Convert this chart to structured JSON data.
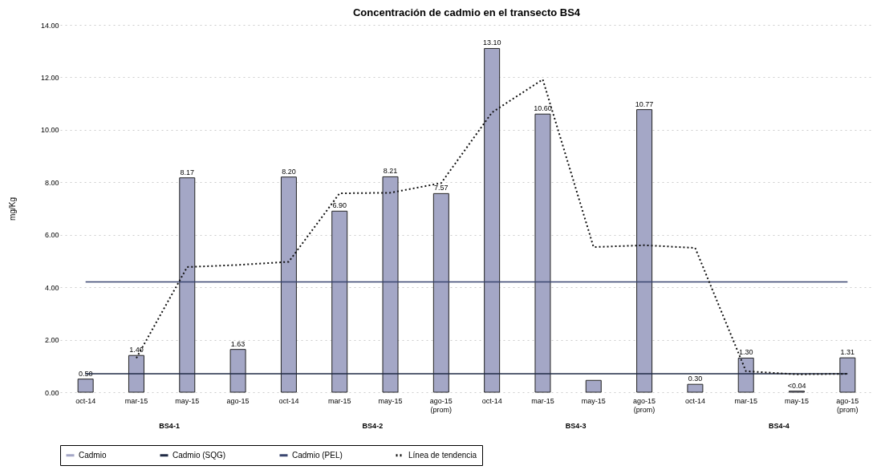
{
  "chart_data": {
    "type": "bar",
    "title": "Concentración de cadmio en el transecto BS4",
    "ylabel": "mg/Kg",
    "categories": [
      "oct-14",
      "mar-15",
      "may-15",
      "ago-15",
      "oct-14",
      "mar-15",
      "may-15",
      "ago-15 (prom)",
      "oct-14",
      "mar-15",
      "may-15",
      "ago-15 (prom)",
      "oct-14",
      "mar-15",
      "may-15",
      "ago-15 (prom)"
    ],
    "series": [
      {
        "name": "Cadmio",
        "color": "#a4a7c6",
        "values": [
          0.5,
          1.4,
          8.17,
          1.63,
          8.2,
          6.9,
          8.21,
          7.57,
          13.1,
          10.6,
          0.45,
          10.77,
          0.3,
          1.3,
          0.04,
          1.31
        ],
        "value_labels": [
          "0.50",
          "1.40",
          "8.17",
          "1.63",
          "8.20",
          "6.90",
          "8.21",
          "7.57",
          "13.10",
          "10.60",
          null,
          "10.77",
          "0.30",
          "1.30",
          "<0.04",
          "1.31"
        ]
      },
      {
        "name": "Cadmio (SQG)",
        "type": "line",
        "color": "#1f2a44",
        "line_style": "solid",
        "values": [
          0.7,
          0.7,
          0.7,
          0.7,
          0.7,
          0.7,
          0.7,
          0.7,
          0.7,
          0.7,
          0.7,
          0.7,
          0.7,
          0.7,
          0.7,
          0.7
        ]
      },
      {
        "name": "Cadmio (PEL)",
        "type": "line",
        "color": "#3a4670",
        "line_style": "solid",
        "values": [
          4.2,
          4.2,
          4.2,
          4.2,
          4.2,
          4.2,
          4.2,
          4.2,
          4.2,
          4.2,
          4.2,
          4.2,
          4.2,
          4.2,
          4.2,
          4.2
        ]
      },
      {
        "name": "Línea de tendencia",
        "type": "line",
        "color": "#111111",
        "line_style": "dotted",
        "values": [
          null,
          1.3,
          4.77,
          4.85,
          4.97,
          7.58,
          7.6,
          7.97,
          10.66,
          11.92,
          5.53,
          5.6,
          5.5,
          0.8,
          0.68,
          0.7
        ]
      }
    ],
    "annotations": [
      "BS4-1",
      "BS4-2",
      "BS4-3",
      "BS4-4"
    ],
    "ylim": [
      0,
      14
    ],
    "yticks": [
      {
        "value": 0,
        "label": "0.00"
      },
      {
        "value": 2,
        "label": "2.00"
      },
      {
        "value": 4,
        "label": "4.00"
      },
      {
        "value": 6,
        "label": "6.00"
      },
      {
        "value": 8,
        "label": "8.00"
      },
      {
        "value": 10,
        "label": "10.00"
      },
      {
        "value": 12,
        "label": "12.00"
      },
      {
        "value": 14,
        "label": "14.00"
      }
    ],
    "grid": "y",
    "legend": "bottom"
  }
}
